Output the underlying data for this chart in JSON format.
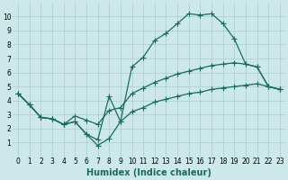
{
  "bg_color": "#cce8e8",
  "grid_color": "#aacccc",
  "line_color": "#1a6b5a",
  "line_width": 0.9,
  "marker": "+",
  "marker_size": 4,
  "marker_linewidth": 0.8,
  "xlabel": "Humidex (Indice chaleur)",
  "xlabel_fontsize": 7,
  "xlim": [
    -0.5,
    23.5
  ],
  "ylim": [
    0,
    11
  ],
  "xticks": [
    0,
    1,
    2,
    3,
    4,
    5,
    6,
    7,
    8,
    9,
    10,
    11,
    12,
    13,
    14,
    15,
    16,
    17,
    18,
    19,
    20,
    21,
    22,
    23
  ],
  "yticks": [
    1,
    2,
    3,
    4,
    5,
    6,
    7,
    8,
    9,
    10
  ],
  "tick_fontsize": 5.5,
  "series": [
    {
      "x": [
        0,
        1,
        2,
        3,
        4,
        5,
        6,
        7,
        8,
        9,
        10,
        11,
        12,
        13,
        14,
        15,
        16,
        17,
        18,
        19,
        20,
        21,
        22,
        23
      ],
      "y": [
        4.5,
        3.7,
        2.8,
        2.7,
        2.3,
        2.5,
        1.6,
        1.2,
        4.3,
        2.5,
        6.4,
        7.1,
        8.3,
        8.8,
        9.5,
        10.2,
        10.1,
        10.2,
        9.5,
        8.4,
        6.6,
        6.4,
        5.0,
        4.8
      ]
    },
    {
      "x": [
        0,
        1,
        2,
        3,
        4,
        5,
        6,
        7,
        8,
        9,
        10,
        11,
        12,
        13,
        14,
        15,
        16,
        17,
        18,
        19,
        20,
        21,
        22,
        23
      ],
      "y": [
        4.5,
        3.7,
        2.8,
        2.7,
        2.3,
        2.9,
        2.6,
        2.3,
        3.3,
        3.5,
        4.5,
        4.9,
        5.3,
        5.6,
        5.9,
        6.1,
        6.3,
        6.5,
        6.6,
        6.7,
        6.6,
        6.4,
        5.0,
        4.8
      ]
    },
    {
      "x": [
        0,
        1,
        2,
        3,
        4,
        5,
        6,
        7,
        8,
        9,
        10,
        11,
        12,
        13,
        14,
        15,
        16,
        17,
        18,
        19,
        20,
        21,
        22,
        23
      ],
      "y": [
        4.5,
        3.7,
        2.8,
        2.7,
        2.3,
        2.5,
        1.6,
        0.8,
        1.3,
        2.5,
        3.2,
        3.5,
        3.9,
        4.1,
        4.3,
        4.5,
        4.6,
        4.8,
        4.9,
        5.0,
        5.1,
        5.2,
        5.0,
        4.8
      ]
    }
  ]
}
